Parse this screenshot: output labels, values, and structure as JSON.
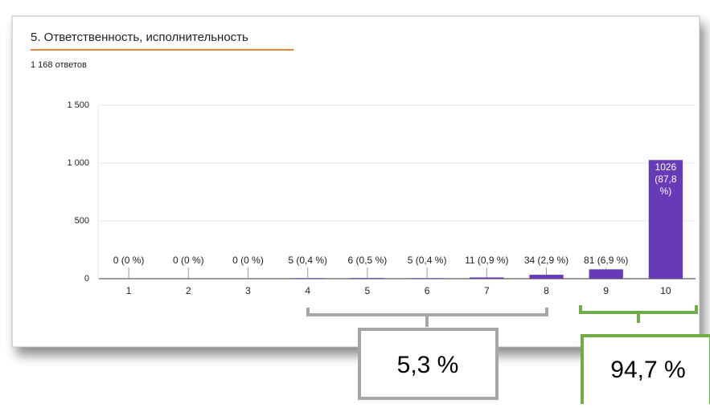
{
  "chart_data": {
    "type": "bar",
    "title": "5. Ответственность, исполнительность",
    "subtitle": "1 168 ответов",
    "categories": [
      "1",
      "2",
      "3",
      "4",
      "5",
      "6",
      "7",
      "8",
      "9",
      "10"
    ],
    "values": [
      0,
      0,
      0,
      5,
      6,
      5,
      11,
      34,
      81,
      1026
    ],
    "value_labels": [
      "0 (0 %)",
      "0 (0 %)",
      "0 (0 %)",
      "5 (0,4 %)",
      "6 (0,5 %)",
      "5 (0,4 %)",
      "11 (0,9 %)",
      "34 (2,9 %)",
      "81 (6,9 %)",
      "1026 (87,8 %)"
    ],
    "color": "#673ab7",
    "ylim": [
      0,
      1500
    ],
    "yticks": [
      0,
      500,
      {
        "value": 1000,
        "label": "1 000"
      },
      {
        "value": 1500,
        "label": "1 500"
      }
    ],
    "grid": true,
    "annotations": [
      "5,3 %",
      "94,7 %"
    ]
  }
}
